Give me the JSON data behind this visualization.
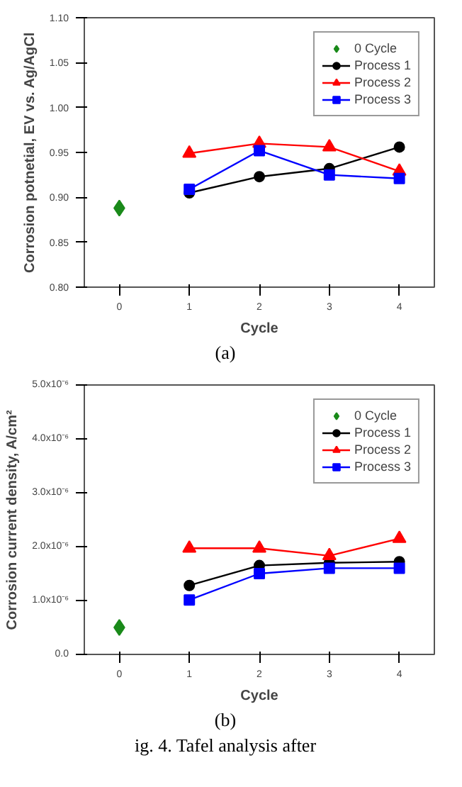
{
  "chart_data": [
    {
      "type": "line",
      "xlabel": "Cycle",
      "ylabel": "Corrosion potnetial, EV vs. Ag/AgCl",
      "annotations": [
        "(a)"
      ],
      "xlim": [
        -0.5,
        4.5
      ],
      "xticks": [
        0,
        1,
        2,
        3,
        4
      ],
      "ylim": [
        0.8,
        1.1
      ],
      "yticks": [
        {
          "value": 0.8,
          "label": "0.80"
        },
        {
          "value": 0.85,
          "label": "0.85"
        },
        {
          "value": 0.9,
          "label": "0.90"
        },
        {
          "value": 0.95,
          "label": "0.95"
        },
        {
          "value": 1.0,
          "label": "1.00"
        },
        {
          "value": 1.05,
          "label": "1.05"
        },
        {
          "value": 1.1,
          "label": "1.10"
        }
      ],
      "grid": false,
      "legend": "top right",
      "line_style": "solid",
      "series": [
        {
          "name": "0 Cycle",
          "type": "scatter",
          "marker": "diamond",
          "color": "#1a8a1a",
          "x": [
            0
          ],
          "values": [
            0.888
          ]
        },
        {
          "name": "Process 1",
          "marker": "circle",
          "color": "#000000",
          "x": [
            1,
            2,
            3,
            4
          ],
          "values": [
            0.905,
            0.923,
            0.932,
            0.956
          ]
        },
        {
          "name": "Process 2",
          "marker": "triangle",
          "color": "#ff0000",
          "x": [
            1,
            2,
            3,
            4
          ],
          "values": [
            0.949,
            0.96,
            0.956,
            0.929
          ]
        },
        {
          "name": "Process 3",
          "marker": "square",
          "color": "#0000ff",
          "x": [
            1,
            2,
            3,
            4
          ],
          "values": [
            0.909,
            0.952,
            0.925,
            0.921
          ]
        }
      ]
    },
    {
      "type": "line",
      "xlabel": "Cycle",
      "ylabel": "Corrosion current density, A/cm²",
      "annotations": [
        "(b)",
        "ig. 4. Tafel analysis after"
      ],
      "xlim": [
        -0.5,
        4.5
      ],
      "xticks": [
        0,
        1,
        2,
        3,
        4
      ],
      "ylim": [
        0,
        5e-06
      ],
      "yticks": [
        {
          "value": 0,
          "label": "0.0"
        },
        {
          "value": 1e-06,
          "label": "1.0x10⁻⁶"
        },
        {
          "value": 2e-06,
          "label": "2.0x10⁻⁶"
        },
        {
          "value": 3e-06,
          "label": "3.0x10⁻⁶"
        },
        {
          "value": 4e-06,
          "label": "4.0x10⁻⁶"
        },
        {
          "value": 5e-06,
          "label": "5.0x10⁻⁶"
        }
      ],
      "grid": false,
      "legend": "top right",
      "line_style": "solid",
      "series": [
        {
          "name": "0 Cycle",
          "type": "scatter",
          "marker": "diamond",
          "color": "#1a8a1a",
          "x": [
            0
          ],
          "values": [
            5e-07
          ]
        },
        {
          "name": "Process 1",
          "marker": "circle",
          "color": "#000000",
          "x": [
            1,
            2,
            3,
            4
          ],
          "values": [
            1.28e-06,
            1.65e-06,
            1.7e-06,
            1.72e-06
          ]
        },
        {
          "name": "Process 2",
          "marker": "triangle",
          "color": "#ff0000",
          "x": [
            1,
            2,
            3,
            4
          ],
          "values": [
            1.97e-06,
            1.97e-06,
            1.83e-06,
            2.15e-06
          ]
        },
        {
          "name": "Process 3",
          "marker": "square",
          "color": "#0000ff",
          "x": [
            1,
            2,
            3,
            4
          ],
          "values": [
            1.01e-06,
            1.5e-06,
            1.6e-06,
            1.6e-06
          ]
        }
      ]
    }
  ]
}
